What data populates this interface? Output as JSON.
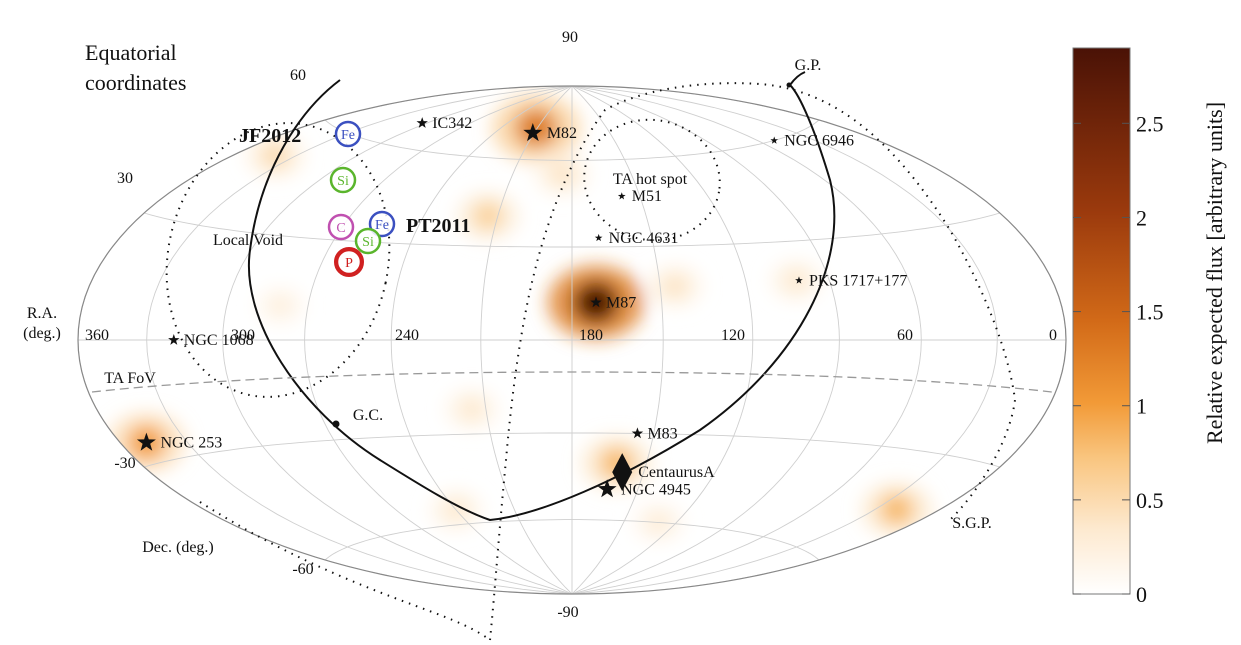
{
  "chart_data": {
    "type": "heatmap",
    "projection": "Hammer-Aitoff (equatorial)",
    "title": "Equatorial coordinates",
    "ra_axis_label": "R.A. (deg.)",
    "dec_axis_label": "Dec. (deg.)",
    "ra_ticks": [
      "360",
      "300",
      "240",
      "180",
      "120",
      "60",
      "0"
    ],
    "dec_ticks": [
      "90",
      "60",
      "30",
      "-30",
      "-60",
      "-90"
    ],
    "colorbar": {
      "label": "Relative expected flux [arbitrary units]",
      "ticks": [
        "0",
        "0.5",
        "1",
        "1.5",
        "2",
        "2.5"
      ],
      "range": [
        0,
        2.9
      ],
      "colors": [
        "#ffffff",
        "#fbe3c4",
        "#f7b057",
        "#e07a1c",
        "#a8400e",
        "#5a1508"
      ]
    },
    "sources": [
      {
        "name": "M82",
        "ra": 149,
        "dec": 70,
        "marker": "star-large"
      },
      {
        "name": "IC342",
        "ra": 57,
        "dec": 68,
        "marker": "star"
      },
      {
        "name": "NGC 6946",
        "ra": 309,
        "dec": 60,
        "marker": "star-small"
      },
      {
        "name": "M51",
        "ra": 202,
        "dec": 47,
        "marker": "star-small"
      },
      {
        "name": "NGC 4631",
        "ra": 190,
        "dec": 33,
        "marker": "star-small"
      },
      {
        "name": "PKS 1717+177",
        "ra": 259,
        "dec": 18,
        "marker": "star-small"
      },
      {
        "name": "M87",
        "ra": 188,
        "dec": 12,
        "marker": "star"
      },
      {
        "name": "NGC 1068",
        "ra": 41,
        "dec": 0,
        "marker": "star"
      },
      {
        "name": "M83",
        "ra": 204,
        "dec": -30,
        "marker": "star"
      },
      {
        "name": "CentaurusA",
        "ra": 201,
        "dec": -43,
        "marker": "diamond"
      },
      {
        "name": "NGC 4945",
        "ra": 196,
        "dec": -49,
        "marker": "star-large"
      },
      {
        "name": "NGC 253",
        "ra": 12,
        "dec": -25,
        "marker": "star-large"
      }
    ],
    "annotations": [
      {
        "text": "TA hot spot"
      },
      {
        "text": "Local Void"
      },
      {
        "text": "TA FoV"
      },
      {
        "text": "G.P."
      },
      {
        "text": "G.C."
      },
      {
        "text": "S.G.P."
      }
    ],
    "models": [
      {
        "name": "JF2012",
        "particles": [
          "Fe",
          "Si"
        ]
      },
      {
        "name": "PT2011",
        "particles": [
          "Fe",
          "Si",
          "C",
          "P"
        ]
      }
    ],
    "particle_colors": {
      "Fe": "#3b50c0",
      "Si": "#5ab52c",
      "C": "#c050b0",
      "P": "#d02020"
    },
    "hotspots": [
      {
        "ra": 188,
        "dec": 12,
        "value": 2.9
      },
      {
        "ra": 149,
        "dec": 72,
        "value": 1.3
      },
      {
        "ra": 146,
        "dec": 40,
        "value": 0.6
      },
      {
        "ra": 175,
        "dec": 55,
        "value": 0.4
      },
      {
        "ra": 215,
        "dec": 17,
        "value": 0.4
      },
      {
        "ra": 198,
        "dec": -40,
        "value": 0.8
      },
      {
        "ra": 145,
        "dec": -22,
        "value": 0.35
      },
      {
        "ra": 12,
        "dec": -25,
        "value": 1.0
      },
      {
        "ra": 20,
        "dec": 50,
        "value": 0.5
      },
      {
        "ra": 340,
        "dec": -45,
        "value": 0.8
      },
      {
        "ra": 120,
        "dec": -55,
        "value": 0.35
      },
      {
        "ra": 80,
        "dec": 10,
        "value": 0.25
      },
      {
        "ra": 258,
        "dec": 18,
        "value": 0.35
      },
      {
        "ra": 230,
        "dec": -60,
        "value": 0.3
      }
    ]
  }
}
